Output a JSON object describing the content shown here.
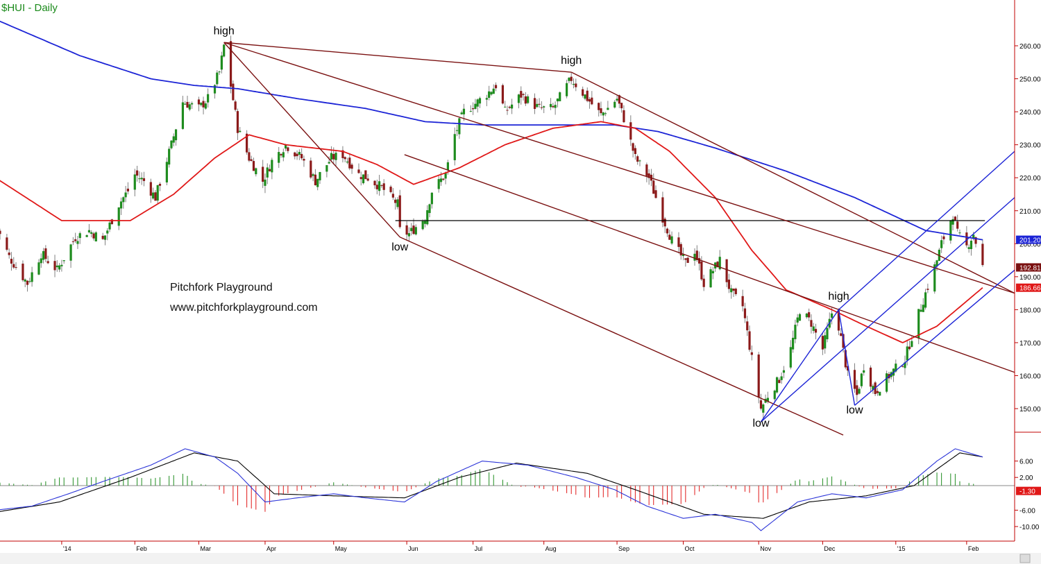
{
  "title": "$HUI - Daily",
  "watermark": {
    "line1": "Pitchfork Playground",
    "line2": "www.pitchforkplayground.com"
  },
  "annotations": [
    {
      "text": "high",
      "date": "2014-03-14",
      "price": 263.5
    },
    {
      "text": "high",
      "date": "2014-08-13",
      "price": 254.5
    },
    {
      "text": "low",
      "date": "2014-05-30",
      "price": 198.0
    },
    {
      "text": "high",
      "date": "2014-12-08",
      "price": 183.0
    },
    {
      "text": "low",
      "date": "2014-11-04",
      "price": 144.5
    },
    {
      "text": "low",
      "date": "2014-12-15",
      "price": 148.5
    }
  ],
  "colors": {
    "up": "#1e8c1e",
    "down": "#8b1a1a",
    "sma200": "#1c24d6",
    "sma50": "#e01818",
    "pitchfork1": "#7a1010",
    "pitchfork2": "#1c24d6",
    "hline": "#000000",
    "macd": "#000000",
    "signal": "#2b34d8",
    "axis": "#c00000"
  },
  "chart_data": [
    {
      "type": "candlestick",
      "title": "$HUI - Daily",
      "x_ticks": [
        "'14",
        "Feb",
        "Mar",
        "Apr",
        "May",
        "Jun",
        "Jul",
        "Aug",
        "Sep",
        "Oct",
        "Nov",
        "Dec",
        "'15",
        "Feb"
      ],
      "y_ticks": [
        150,
        160,
        170,
        180,
        190,
        200,
        210,
        220,
        230,
        240,
        250,
        260
      ],
      "ylim": [
        142,
        272
      ],
      "xlim": [
        "2013-12-06",
        "2015-02-23"
      ],
      "last_values": [
        {
          "label": "201.20",
          "color": "#1c24d6",
          "price": 201.2
        },
        {
          "label": "192.81",
          "color": "#7a1010",
          "price": 192.81
        },
        {
          "label": "186.66",
          "color": "#e01818",
          "price": 186.66
        }
      ],
      "waypoints": [
        [
          "2013-12-04",
          206
        ],
        [
          "2013-12-10",
          196
        ],
        [
          "2013-12-18",
          188
        ],
        [
          "2013-12-24",
          197
        ],
        [
          "2013-12-31",
          192
        ],
        [
          "2014-01-08",
          202
        ],
        [
          "2014-01-14",
          204
        ],
        [
          "2014-01-20",
          201
        ],
        [
          "2014-01-27",
          212
        ],
        [
          "2014-01-31",
          216
        ],
        [
          "2014-02-03",
          221
        ],
        [
          "2014-02-07",
          219
        ],
        [
          "2014-02-12",
          214
        ],
        [
          "2014-02-19",
          230
        ],
        [
          "2014-02-24",
          243
        ],
        [
          "2014-03-03",
          241
        ],
        [
          "2014-03-07",
          244
        ],
        [
          "2014-03-12",
          252
        ],
        [
          "2014-03-14",
          260
        ],
        [
          "2014-03-17",
          248
        ],
        [
          "2014-03-20",
          235
        ],
        [
          "2014-03-25",
          226
        ],
        [
          "2014-03-31",
          219
        ],
        [
          "2014-04-04",
          225
        ],
        [
          "2014-04-10",
          230
        ],
        [
          "2014-04-17",
          226
        ],
        [
          "2014-04-23",
          219
        ],
        [
          "2014-04-30",
          226
        ],
        [
          "2014-05-05",
          227
        ],
        [
          "2014-05-12",
          221
        ],
        [
          "2014-05-16",
          220
        ],
        [
          "2014-05-22",
          217
        ],
        [
          "2014-05-29",
          212
        ],
        [
          "2014-05-30",
          204
        ],
        [
          "2014-06-03",
          203
        ],
        [
          "2014-06-10",
          208
        ],
        [
          "2014-06-13",
          216
        ],
        [
          "2014-06-19",
          221
        ],
        [
          "2014-06-23",
          233
        ],
        [
          "2014-06-27",
          240
        ],
        [
          "2014-07-03",
          243
        ],
        [
          "2014-07-08",
          246
        ],
        [
          "2014-07-11",
          248
        ],
        [
          "2014-07-15",
          240
        ],
        [
          "2014-07-22",
          245
        ],
        [
          "2014-07-30",
          241
        ],
        [
          "2014-08-05",
          241
        ],
        [
          "2014-08-13",
          250
        ],
        [
          "2014-08-20",
          244
        ],
        [
          "2014-08-26",
          239
        ],
        [
          "2014-09-02",
          244
        ],
        [
          "2014-09-05",
          238
        ],
        [
          "2014-09-10",
          226
        ],
        [
          "2014-09-16",
          220
        ],
        [
          "2014-09-22",
          208
        ],
        [
          "2014-09-26",
          201
        ],
        [
          "2014-10-02",
          194
        ],
        [
          "2014-10-06",
          198
        ],
        [
          "2014-10-10",
          188
        ],
        [
          "2014-10-17",
          195
        ],
        [
          "2014-10-22",
          185
        ],
        [
          "2014-10-27",
          181
        ],
        [
          "2014-10-31",
          165
        ],
        [
          "2014-11-04",
          150
        ],
        [
          "2014-11-07",
          154
        ],
        [
          "2014-11-12",
          159
        ],
        [
          "2014-11-17",
          168
        ],
        [
          "2014-11-21",
          180
        ],
        [
          "2014-11-26",
          176
        ],
        [
          "2014-12-01",
          168
        ],
        [
          "2014-12-05",
          179
        ],
        [
          "2014-12-08",
          175
        ],
        [
          "2014-12-12",
          160
        ],
        [
          "2014-12-16",
          154
        ],
        [
          "2014-12-19",
          163
        ],
        [
          "2014-12-24",
          155
        ],
        [
          "2014-12-30",
          160
        ],
        [
          "2015-01-06",
          165
        ],
        [
          "2015-01-13",
          181
        ],
        [
          "2015-01-16",
          187
        ],
        [
          "2015-01-20",
          195
        ],
        [
          "2015-01-22",
          200
        ],
        [
          "2015-01-27",
          209
        ],
        [
          "2015-01-29",
          203
        ],
        [
          "2015-02-02",
          199
        ],
        [
          "2015-02-05",
          203
        ],
        [
          "2015-02-09",
          193
        ]
      ],
      "sma200_waypoints": [
        [
          "2013-12-04",
          268
        ],
        [
          "2014-01-10",
          257
        ],
        [
          "2014-02-10",
          250
        ],
        [
          "2014-03-01",
          248
        ],
        [
          "2014-03-20",
          247
        ],
        [
          "2014-04-15",
          244
        ],
        [
          "2014-05-15",
          241
        ],
        [
          "2014-06-10",
          237
        ],
        [
          "2014-07-05",
          236
        ],
        [
          "2014-08-01",
          236
        ],
        [
          "2014-09-01",
          236
        ],
        [
          "2014-09-20",
          234
        ],
        [
          "2014-10-15",
          229
        ],
        [
          "2014-11-15",
          222
        ],
        [
          "2014-12-15",
          214
        ],
        [
          "2015-01-15",
          204
        ],
        [
          "2015-02-09",
          201.2
        ]
      ],
      "sma50_waypoints": [
        [
          "2013-12-04",
          220
        ],
        [
          "2014-01-02",
          207
        ],
        [
          "2014-02-01",
          207
        ],
        [
          "2014-02-20",
          215
        ],
        [
          "2014-03-10",
          226
        ],
        [
          "2014-03-25",
          233
        ],
        [
          "2014-04-10",
          230
        ],
        [
          "2014-05-05",
          228
        ],
        [
          "2014-05-20",
          224
        ],
        [
          "2014-06-05",
          218
        ],
        [
          "2014-06-25",
          223
        ],
        [
          "2014-07-15",
          230
        ],
        [
          "2014-08-05",
          235
        ],
        [
          "2014-08-26",
          237
        ],
        [
          "2014-09-10",
          235
        ],
        [
          "2014-09-25",
          228
        ],
        [
          "2014-10-15",
          214
        ],
        [
          "2014-10-31",
          198
        ],
        [
          "2014-11-15",
          186
        ],
        [
          "2014-12-05",
          180
        ],
        [
          "2014-12-20",
          175
        ],
        [
          "2015-01-05",
          170
        ],
        [
          "2015-01-20",
          175
        ],
        [
          "2015-02-09",
          186.66
        ]
      ],
      "horizontal_line": {
        "price": 207,
        "from": "2014-05-28",
        "to": "2015-02-10"
      },
      "pitchfork_1": {
        "pivot": [
          "2014-03-14",
          261
        ],
        "high": [
          "2014-08-13",
          252
        ],
        "low": [
          "2014-05-30",
          202
        ],
        "slope_per_day": -0.2516,
        "median_start": [
          "2014-06-01",
          227
        ],
        "median_end": [
          "2015-02-23",
          161
        ],
        "upper_end": [
          "2015-02-23",
          185
        ],
        "lower_end": [
          "2014-12-10",
          142
        ]
      },
      "pitchfork_2": {
        "pivot": [
          "2014-11-04",
          146
        ],
        "high": [
          "2014-12-08",
          180
        ],
        "low": [
          "2014-12-15",
          151
        ],
        "slope_per_day": 0.3205,
        "median_end": [
          "2015-02-23",
          214
        ],
        "upper_end": [
          "2015-02-23",
          228
        ],
        "lower_end": [
          "2015-02-23",
          192
        ]
      }
    },
    {
      "type": "macd",
      "y_ticks": [
        -10,
        -6,
        2,
        6
      ],
      "ylim": [
        -12,
        10
      ],
      "last_value": {
        "label": "-1.30",
        "color": "#e01818",
        "value": -1.3
      },
      "macd_waypoints": [
        [
          "2013-12-04",
          -6
        ],
        [
          "2013-12-20",
          -5
        ],
        [
          "2014-01-05",
          -2
        ],
        [
          "2014-01-20",
          1
        ],
        [
          "2014-02-10",
          5
        ],
        [
          "2014-02-25",
          9
        ],
        [
          "2014-03-10",
          7
        ],
        [
          "2014-03-20",
          3
        ],
        [
          "2014-04-01",
          -4
        ],
        [
          "2014-04-15",
          -3
        ],
        [
          "2014-05-01",
          -2
        ],
        [
          "2014-05-15",
          -3
        ],
        [
          "2014-06-01",
          -4
        ],
        [
          "2014-06-15",
          1
        ],
        [
          "2014-07-05",
          6
        ],
        [
          "2014-07-25",
          5
        ],
        [
          "2014-08-15",
          2
        ],
        [
          "2014-09-01",
          -1
        ],
        [
          "2014-09-15",
          -5
        ],
        [
          "2014-10-01",
          -8
        ],
        [
          "2014-10-15",
          -7
        ],
        [
          "2014-10-31",
          -9
        ],
        [
          "2014-11-04",
          -11
        ],
        [
          "2014-11-20",
          -4
        ],
        [
          "2014-12-05",
          -2
        ],
        [
          "2014-12-20",
          -3
        ],
        [
          "2015-01-05",
          -1
        ],
        [
          "2015-01-20",
          6
        ],
        [
          "2015-01-28",
          9
        ],
        [
          "2015-02-09",
          7
        ]
      ],
      "signal_waypoints": [
        [
          "2013-12-04",
          -6.5
        ],
        [
          "2014-01-01",
          -4
        ],
        [
          "2014-02-01",
          2
        ],
        [
          "2014-03-01",
          8
        ],
        [
          "2014-03-20",
          6
        ],
        [
          "2014-04-05",
          -2
        ],
        [
          "2014-05-01",
          -2.5
        ],
        [
          "2014-06-01",
          -3
        ],
        [
          "2014-06-25",
          2
        ],
        [
          "2014-07-20",
          5.5
        ],
        [
          "2014-08-20",
          3
        ],
        [
          "2014-09-10",
          -1
        ],
        [
          "2014-10-10",
          -7
        ],
        [
          "2014-11-05",
          -8
        ],
        [
          "2014-11-25",
          -4
        ],
        [
          "2014-12-20",
          -2.5
        ],
        [
          "2015-01-10",
          0
        ],
        [
          "2015-01-30",
          8
        ],
        [
          "2015-02-09",
          7
        ]
      ]
    }
  ]
}
